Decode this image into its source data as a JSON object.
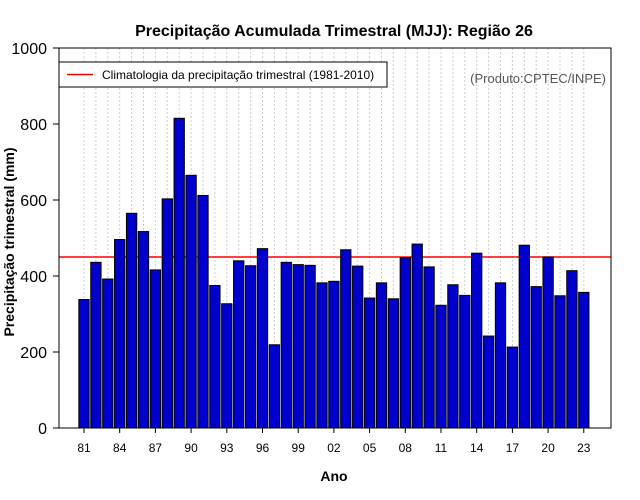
{
  "chart_data": {
    "type": "bar",
    "title": "Precipitação Acumulada Trimestral (MJJ): Região 26",
    "xlabel": "Ano",
    "ylabel": "Precipitação trimestral (mm)",
    "ylim": [
      0,
      1000
    ],
    "yticks": [
      "0",
      "200",
      "400",
      "600",
      "800",
      "1000"
    ],
    "xtick_labels": [
      "81",
      "84",
      "87",
      "90",
      "93",
      "96",
      "99",
      "02",
      "05",
      "08",
      "11",
      "14",
      "17",
      "20",
      "23"
    ],
    "xtick_years": [
      1981,
      1984,
      1987,
      1990,
      1993,
      1996,
      1999,
      2002,
      2005,
      2008,
      2011,
      2014,
      2017,
      2020,
      2023
    ],
    "years": [
      1981,
      1982,
      1983,
      1984,
      1985,
      1986,
      1987,
      1988,
      1989,
      1990,
      1991,
      1992,
      1993,
      1994,
      1995,
      1996,
      1997,
      1998,
      1999,
      2000,
      2001,
      2002,
      2003,
      2004,
      2005,
      2006,
      2007,
      2008,
      2009,
      2010,
      2011,
      2012,
      2013,
      2014,
      2015,
      2016,
      2017,
      2018,
      2019,
      2020,
      2021,
      2022,
      2023
    ],
    "values": [
      338,
      436,
      392,
      496,
      565,
      517,
      416,
      603,
      815,
      665,
      612,
      375,
      327,
      440,
      427,
      472,
      219,
      436,
      430,
      428,
      382,
      386,
      469,
      426,
      342,
      382,
      340,
      448,
      484,
      424,
      323,
      377,
      349,
      460,
      242,
      382,
      213,
      481,
      372,
      450,
      348,
      414,
      357
    ],
    "bar_color": "#0000cc",
    "reference_line": {
      "label": "Climatologia da precipitação trimestral (1981-2010)",
      "value": 450,
      "color": "#ff0000"
    },
    "grid": true,
    "legend_position": "top-left",
    "source_note": "(Produto:CPTEC/INPE)"
  }
}
